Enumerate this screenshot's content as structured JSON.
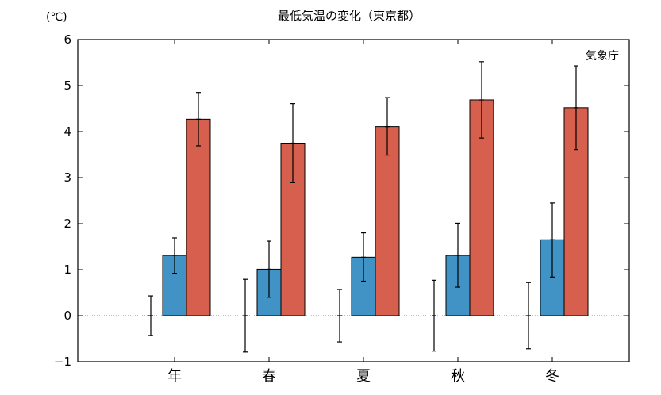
{
  "chart_data": {
    "type": "bar",
    "title": "最低気温の変化（東京都）",
    "unit_label": "(℃)",
    "source_label": "気象庁",
    "categories": [
      "年",
      "春",
      "夏",
      "秋",
      "冬"
    ],
    "ylim": [
      -1,
      6
    ],
    "yticks": [
      -1,
      0,
      1,
      2,
      3,
      4,
      5,
      6
    ],
    "grid": false,
    "zero_line": "dotted",
    "series": [
      {
        "values": [
          0,
          0,
          0,
          0,
          0
        ],
        "error": [
          0.43,
          0.79,
          0.57,
          0.77,
          0.72
        ],
        "color": "#ffffff"
      },
      {
        "values": [
          1.31,
          1.01,
          1.27,
          1.31,
          1.65
        ],
        "error_low": [
          0.39,
          0.61,
          0.52,
          0.69,
          0.81
        ],
        "error_high": [
          0.38,
          0.61,
          0.53,
          0.7,
          0.8
        ],
        "color": "#4193c5"
      },
      {
        "values": [
          4.27,
          3.75,
          4.11,
          4.69,
          4.52
        ],
        "error_low": [
          0.58,
          0.86,
          0.62,
          0.83,
          0.91
        ],
        "error_high": [
          0.58,
          0.86,
          0.63,
          0.83,
          0.91
        ],
        "color": "#d6604d"
      }
    ]
  }
}
